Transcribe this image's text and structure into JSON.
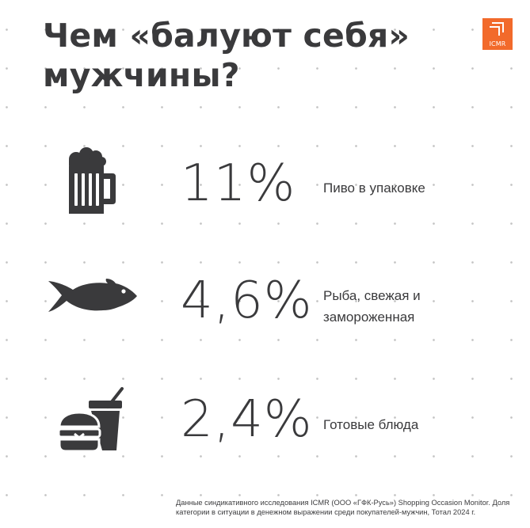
{
  "title": {
    "line1": "Чем «балуют себя»",
    "line2": "мужчины?"
  },
  "logo": {
    "text": "ICMR"
  },
  "colors": {
    "accent": "#f26a2b",
    "icon": "#3a3a3c",
    "text": "#3a3a3c"
  },
  "items": [
    {
      "icon": "beer-mug-icon",
      "value": "11%",
      "label": "Пиво в упаковке"
    },
    {
      "icon": "fish-icon",
      "value": "4,6%",
      "label_lines": [
        "Рыба, свежая и",
        "замороженная"
      ]
    },
    {
      "icon": "burger-drink-icon",
      "value": "2,4%",
      "label": "Готовые блюда"
    }
  ],
  "footnote": {
    "line1": "Данные синдикативного исследования ICMR (ООО «ГФК-Русь») Shopping Occasion Monitor. Доля",
    "line2": "категории в ситуации в денежном выражении среди покупателей-мужчин, Тотал 2024 г."
  }
}
